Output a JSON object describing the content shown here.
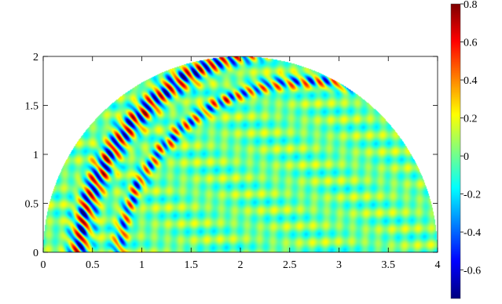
{
  "chart_data": {
    "type": "heatmap",
    "title": "",
    "xlabel": "",
    "ylabel": "",
    "domain_shape": "half-disk",
    "domain_center": [
      2.0,
      0.0
    ],
    "domain_radius": 2.0,
    "xlim": [
      0,
      4
    ],
    "ylim": [
      0,
      2
    ],
    "x_ticks": [
      0,
      0.5,
      1,
      1.5,
      2,
      2.5,
      3,
      3.5,
      4
    ],
    "x_tick_labels": [
      "0",
      "0.5",
      "1",
      "1.5",
      "2",
      "2.5",
      "3",
      "3.5",
      "4"
    ],
    "y_ticks": [
      0,
      0.5,
      1,
      1.5,
      2
    ],
    "y_tick_labels": [
      "0",
      "0.5",
      "1",
      "1.5",
      "2"
    ],
    "colorbar": {
      "range": [
        -0.75,
        0.8
      ],
      "ticks": [
        0.8,
        0.6,
        0.4,
        0.2,
        0,
        -0.2,
        -0.4,
        -0.6
      ],
      "tick_labels": [
        "0.8",
        "0.6",
        "0.4",
        "0.2",
        "0",
        "-0.2",
        "-0.4",
        "-0.6"
      ],
      "colormap": "jet",
      "placement": "right"
    },
    "outside_domain_color": "#ffffff",
    "background_color": "#ffffff",
    "grid": false
  }
}
